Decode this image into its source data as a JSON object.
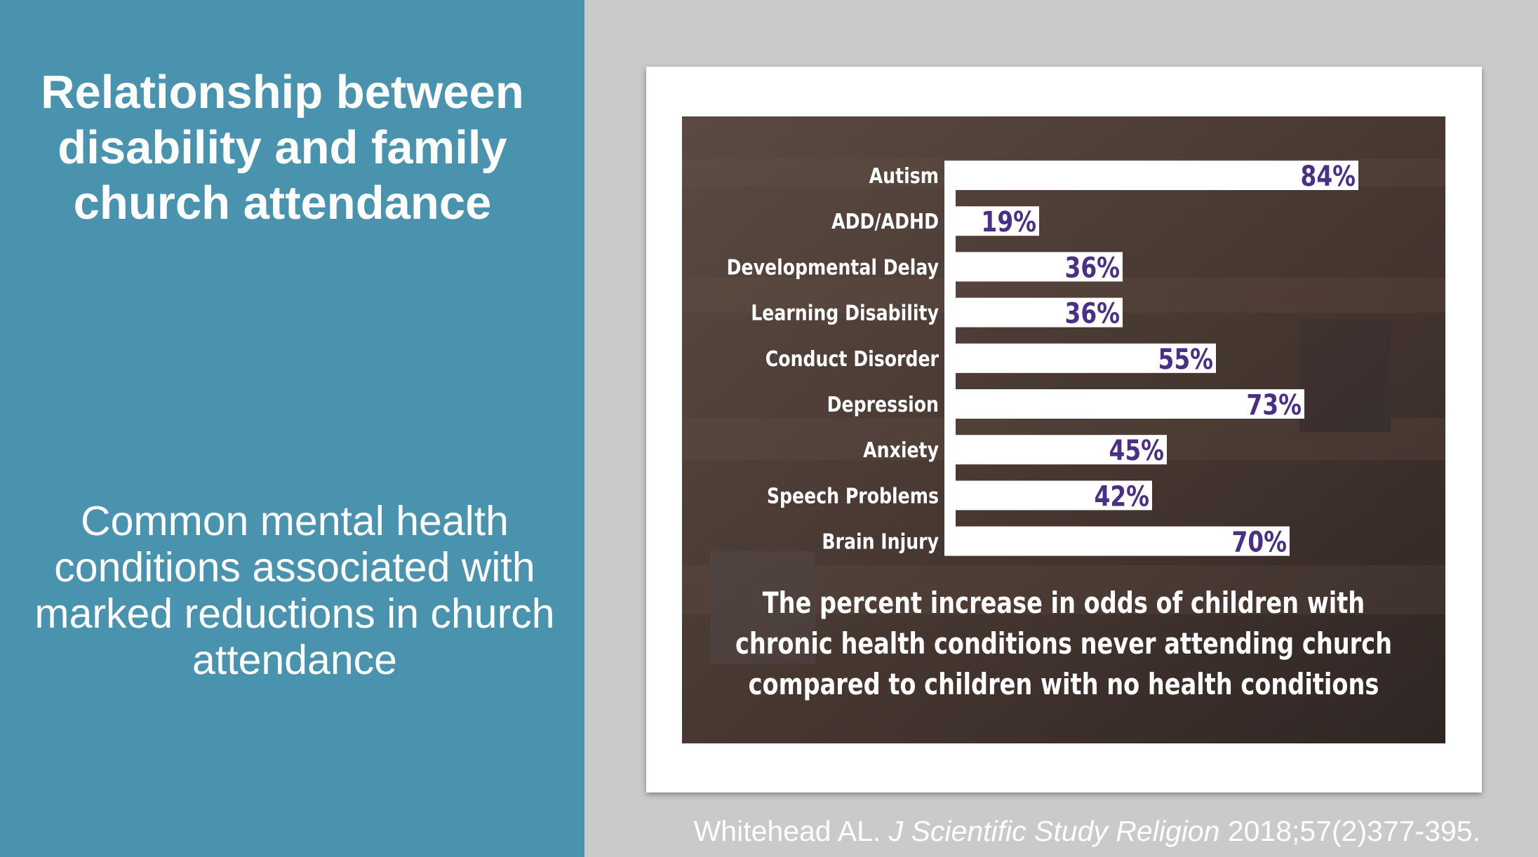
{
  "slide": {
    "title": "Relationship between disability and family church attendance",
    "subtitle": "Common mental health conditions associated with marked reductions in church attendance"
  },
  "citation": {
    "authors": "Whitehead AL.",
    "journal": "J Scientific Study Religion",
    "reference": "2018;57(2)377-395."
  },
  "colors": {
    "left_panel": "#4a93af",
    "background": "#c9cac9",
    "value_label": "#4a2f86",
    "chart_background": "#4a3a33"
  },
  "chart_data": {
    "type": "bar",
    "orientation": "horizontal",
    "categories": [
      "Autism",
      "ADD/ADHD",
      "Developmental Delay",
      "Learning Disability",
      "Conduct Disorder",
      "Depression",
      "Anxiety",
      "Speech Problems",
      "Brain Injury"
    ],
    "values": [
      84,
      19,
      36,
      36,
      55,
      73,
      45,
      42,
      70
    ],
    "value_labels": [
      "84%",
      "19%",
      "36%",
      "36%",
      "55%",
      "73%",
      "45%",
      "42%",
      "70%"
    ],
    "unit": "%",
    "xlim": [
      0,
      100
    ],
    "caption_lines": [
      "The percent increase in odds of children with",
      "chronic health conditions never attending church",
      "compared to children with no health conditions"
    ],
    "grid": false,
    "legend": "none"
  }
}
